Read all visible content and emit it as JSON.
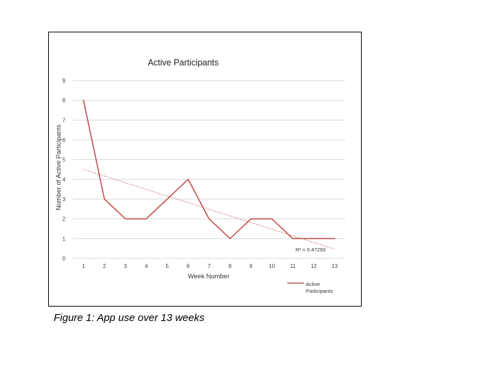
{
  "caption": "Figure 1: App use over 13 weeks",
  "colors": {
    "series": "#c0504d",
    "grid": "#d9d9d9"
  },
  "chart_data": {
    "type": "line",
    "title": "Active Participants",
    "xlabel": "Week Number",
    "ylabel": "Number of Active Participants",
    "categories": [
      "1",
      "2",
      "3",
      "4",
      "5",
      "6",
      "7",
      "8",
      "9",
      "10",
      "11",
      "12",
      "13"
    ],
    "x": [
      1,
      2,
      3,
      4,
      5,
      6,
      7,
      8,
      9,
      10,
      11,
      12,
      13
    ],
    "series": [
      {
        "name": "Active Participants",
        "values": [
          8,
          3,
          2,
          2,
          3,
          4,
          2,
          1,
          2,
          2,
          1,
          1,
          1
        ]
      }
    ],
    "trendline": {
      "type": "linear",
      "r2_label": "R² = 0.47293",
      "start_value": 4.5,
      "end_value": 0.47
    },
    "ylim": [
      0,
      9
    ],
    "yticks": [
      0,
      1,
      2,
      3,
      4,
      5,
      6,
      7,
      8,
      9
    ],
    "grid": true,
    "legend_position": "bottom-right"
  }
}
